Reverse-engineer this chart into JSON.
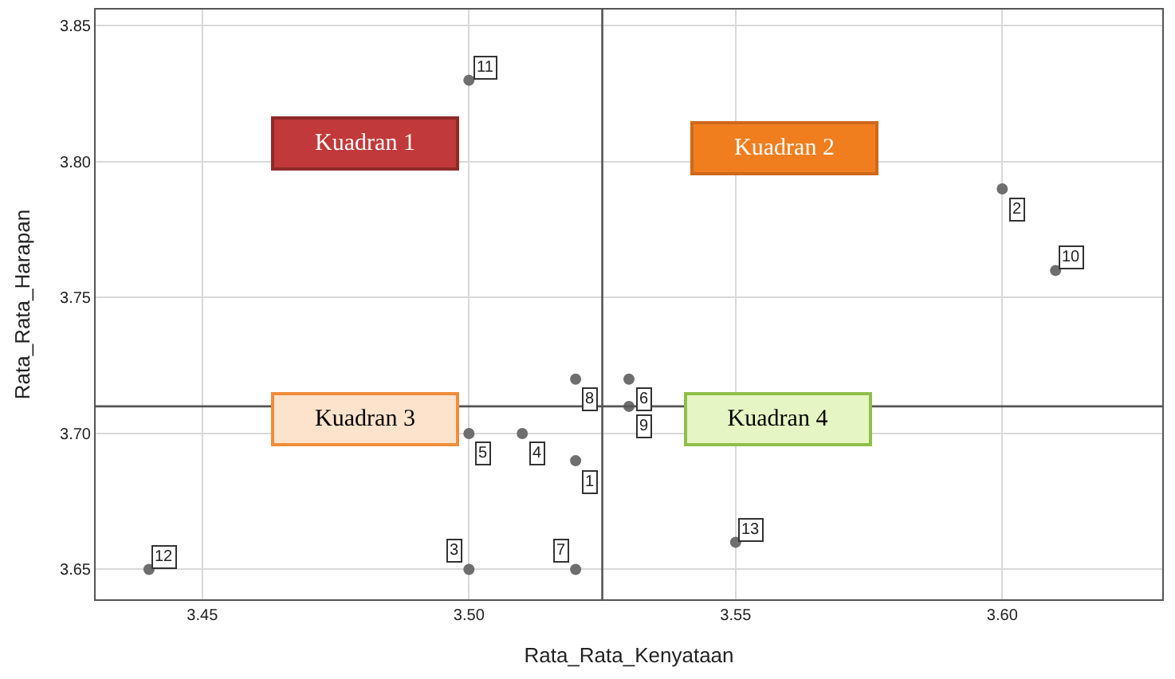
{
  "chart_data": {
    "type": "scatter",
    "xlabel": "Rata_Rata_Kenyataan",
    "ylabel": "Rata_Rata_Harapan",
    "x": [
      3.52,
      3.6,
      3.5,
      3.51,
      3.5,
      3.53,
      3.52,
      3.52,
      3.53,
      3.61,
      3.5,
      3.44,
      3.55
    ],
    "values": [
      3.69,
      3.79,
      3.65,
      3.7,
      3.7,
      3.72,
      3.65,
      3.72,
      3.71,
      3.76,
      3.83,
      3.65,
      3.66
    ],
    "color": "#6e6e6e",
    "marker": "circle",
    "xlim": [
      3.43,
      3.63
    ],
    "xticks": [
      3.45,
      {
        "value": 3.5,
        "label": "3.50"
      },
      3.55,
      {
        "value": 3.6,
        "label": "3.60"
      }
    ],
    "ylim": [
      3.639,
      3.856
    ],
    "yticks": [
      3.65,
      {
        "value": 3.7,
        "label": "3.70"
      },
      3.75,
      {
        "value": 3.8,
        "label": "3.80"
      },
      3.85
    ],
    "grid": true,
    "ref_lines": [
      {
        "axis": "x",
        "value": 3.525,
        "color": "#555555"
      },
      {
        "axis": "y",
        "value": 3.71,
        "color": "#555555"
      }
    ],
    "annotations": [
      {
        "text": "1",
        "x": 3.52,
        "y": 3.69
      },
      {
        "text": "2",
        "x": 3.6,
        "y": 3.79
      },
      {
        "text": "3",
        "x": 3.5,
        "y": 3.65
      },
      {
        "text": "4",
        "x": 3.51,
        "y": 3.7
      },
      {
        "text": "5",
        "x": 3.5,
        "y": 3.7
      },
      {
        "text": "6",
        "x": 3.53,
        "y": 3.72
      },
      {
        "text": "7",
        "x": 3.52,
        "y": 3.65
      },
      {
        "text": "8",
        "x": 3.52,
        "y": 3.72
      },
      {
        "text": "9",
        "x": 3.53,
        "y": 3.71
      },
      {
        "text": "10",
        "x": 3.61,
        "y": 3.76
      },
      {
        "text": "11",
        "x": 3.5,
        "y": 3.83
      },
      {
        "text": "12",
        "x": 3.44,
        "y": 3.65
      },
      {
        "text": "13",
        "x": 3.55,
        "y": 3.66
      },
      "Kuadran 1",
      "Kuadran 2",
      "Kuadran 3",
      "Kuadran 4"
    ]
  }
}
